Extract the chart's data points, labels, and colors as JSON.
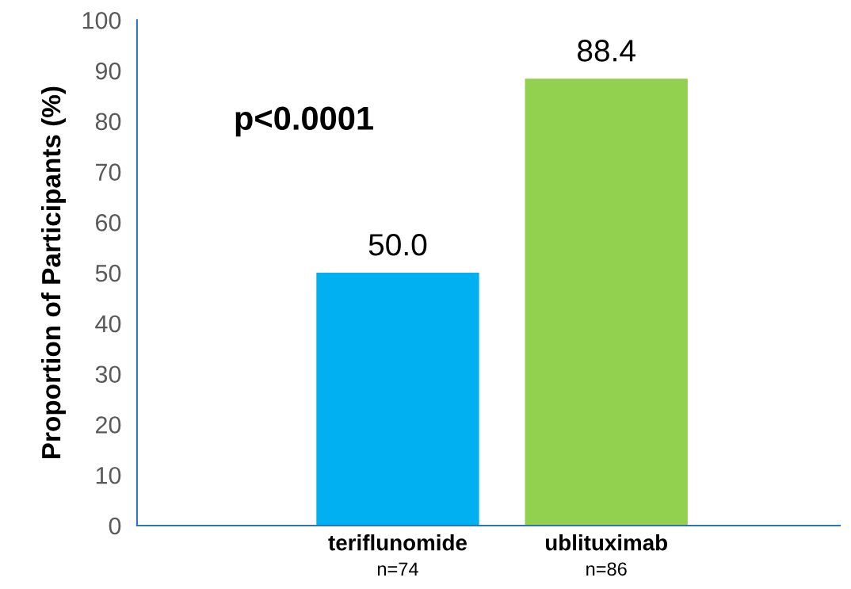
{
  "chart_data": {
    "type": "bar",
    "ylabel": "Proportion of Participants (%)",
    "categories": [
      "teriflunomide",
      "ublituximab"
    ],
    "values": [
      50.0,
      88.4
    ],
    "colors": [
      "#00b0f0",
      "#92d050"
    ],
    "value_labels": [
      "50.0",
      "88.4"
    ],
    "ylim": [
      0,
      100
    ],
    "yticks": [
      0,
      10,
      20,
      30,
      40,
      50,
      60,
      70,
      80,
      90,
      100
    ],
    "annotations": [
      "p<0.0001",
      "n=74",
      "n=86"
    ],
    "grid": false,
    "legend": false
  }
}
